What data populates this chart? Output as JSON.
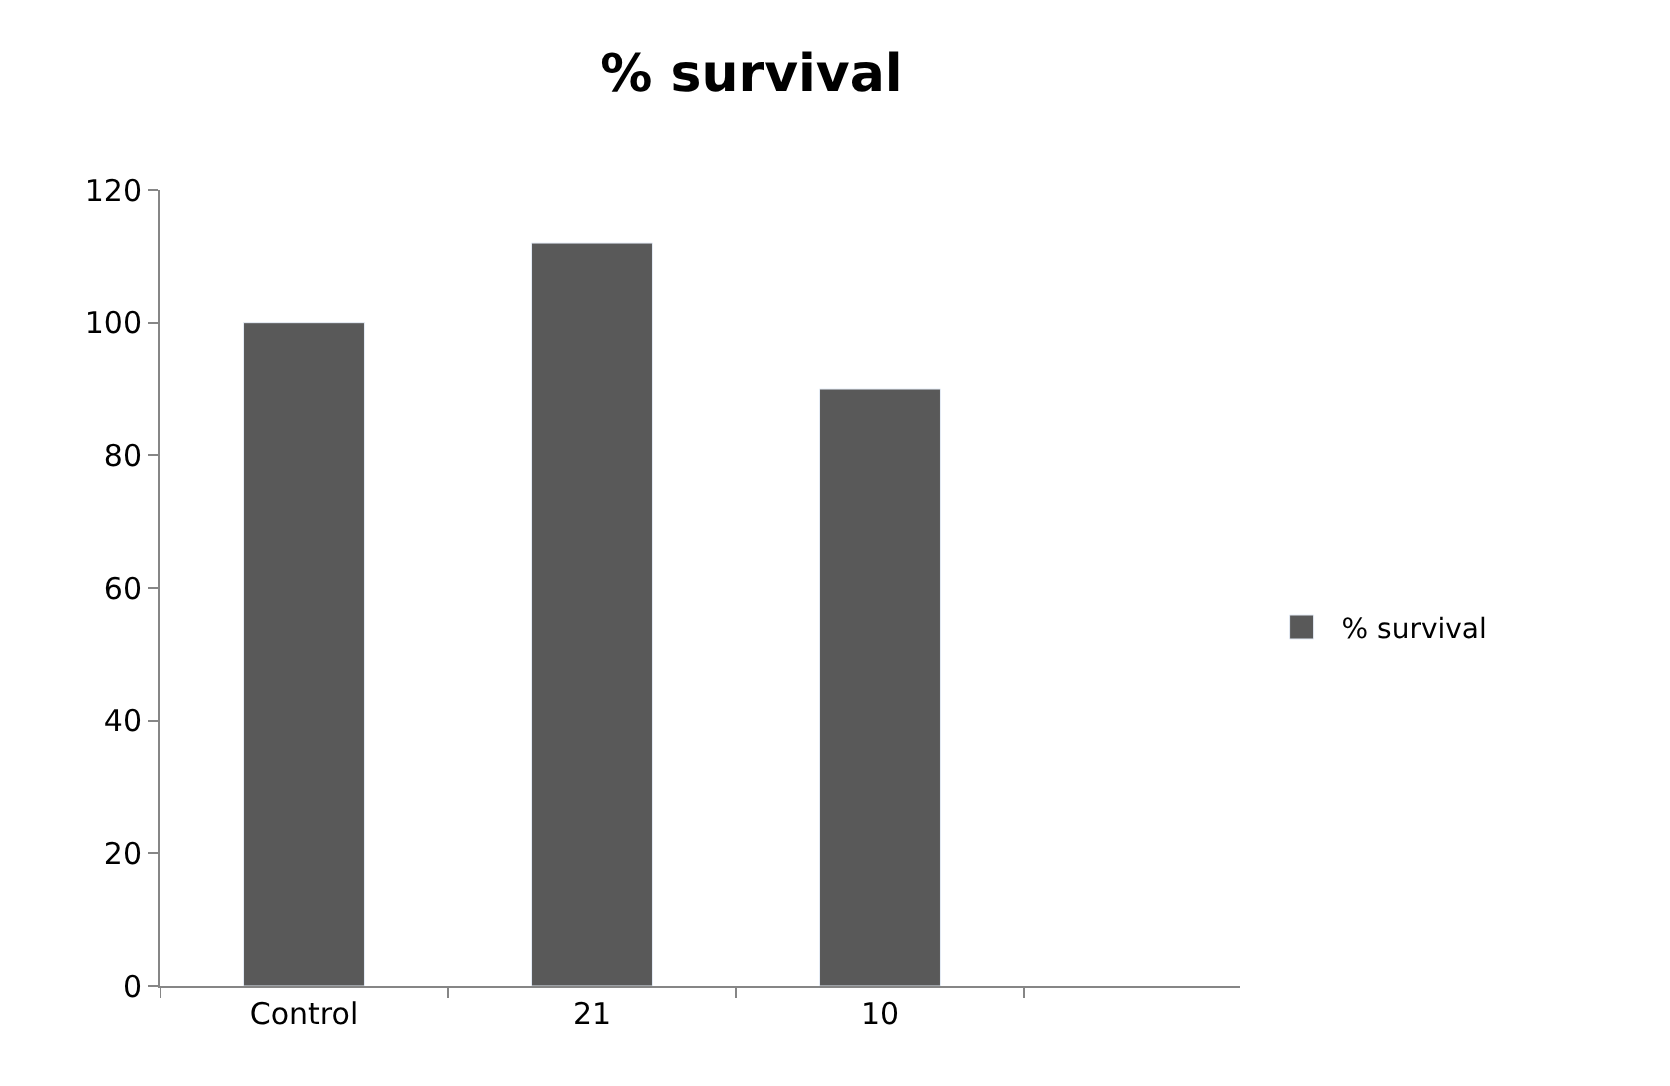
{
  "chart_data": {
    "type": "bar",
    "title": "% survival",
    "categories": [
      "Control",
      "21",
      "10"
    ],
    "series": [
      {
        "name": "% survival",
        "color": "#595959",
        "values": [
          100,
          112,
          90
        ]
      }
    ],
    "ylim": [
      0,
      120
    ],
    "yticks": [
      0,
      20,
      40,
      60,
      80,
      100,
      120
    ],
    "legend": "right"
  }
}
